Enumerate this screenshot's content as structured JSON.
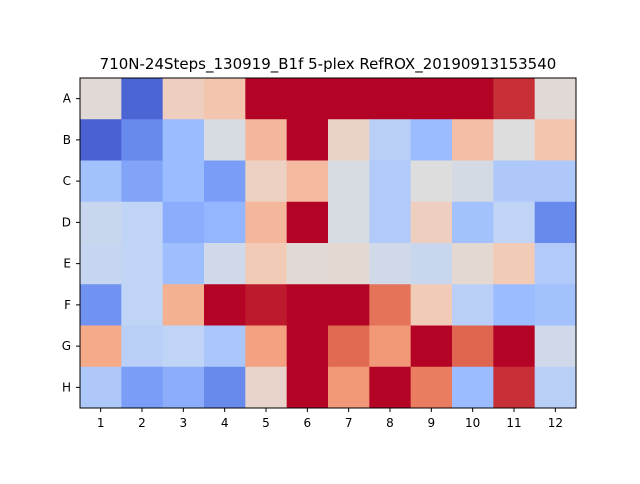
{
  "chart_data": {
    "type": "heatmap",
    "title": "710N-24Steps_130919_B1f 5-plex RefROX_20190913153540",
    "xlabel": "",
    "ylabel": "",
    "x_categories": [
      "1",
      "2",
      "3",
      "4",
      "5",
      "6",
      "7",
      "8",
      "9",
      "10",
      "11",
      "12"
    ],
    "y_categories": [
      "A",
      "B",
      "C",
      "D",
      "E",
      "F",
      "G",
      "H"
    ],
    "colormap": "coolwarm",
    "value_range": [
      0,
      1
    ],
    "grid": false,
    "colorbar": false,
    "values": [
      [
        0.52,
        0.06,
        0.58,
        0.62,
        1.0,
        1.0,
        1.0,
        1.0,
        1.0,
        1.0,
        0.94,
        0.52
      ],
      [
        0.05,
        0.15,
        0.3,
        0.48,
        0.66,
        1.0,
        0.56,
        0.38,
        0.3,
        0.64,
        0.5,
        0.62
      ],
      [
        0.32,
        0.22,
        0.3,
        0.2,
        0.57,
        0.65,
        0.48,
        0.36,
        0.5,
        0.47,
        0.35,
        0.35
      ],
      [
        0.43,
        0.4,
        0.25,
        0.28,
        0.66,
        1.0,
        0.48,
        0.36,
        0.58,
        0.32,
        0.4,
        0.15
      ],
      [
        0.42,
        0.4,
        0.31,
        0.45,
        0.6,
        0.52,
        0.53,
        0.45,
        0.43,
        0.53,
        0.6,
        0.36
      ],
      [
        0.17,
        0.4,
        0.68,
        1.0,
        0.97,
        1.0,
        1.0,
        0.82,
        0.6,
        0.38,
        0.3,
        0.32
      ],
      [
        0.7,
        0.38,
        0.4,
        0.34,
        0.72,
        1.0,
        0.84,
        0.74,
        1.0,
        0.85,
        1.0,
        0.45
      ],
      [
        0.35,
        0.2,
        0.25,
        0.15,
        0.55,
        1.0,
        0.74,
        1.0,
        0.8,
        0.3,
        0.94,
        0.38
      ]
    ]
  }
}
